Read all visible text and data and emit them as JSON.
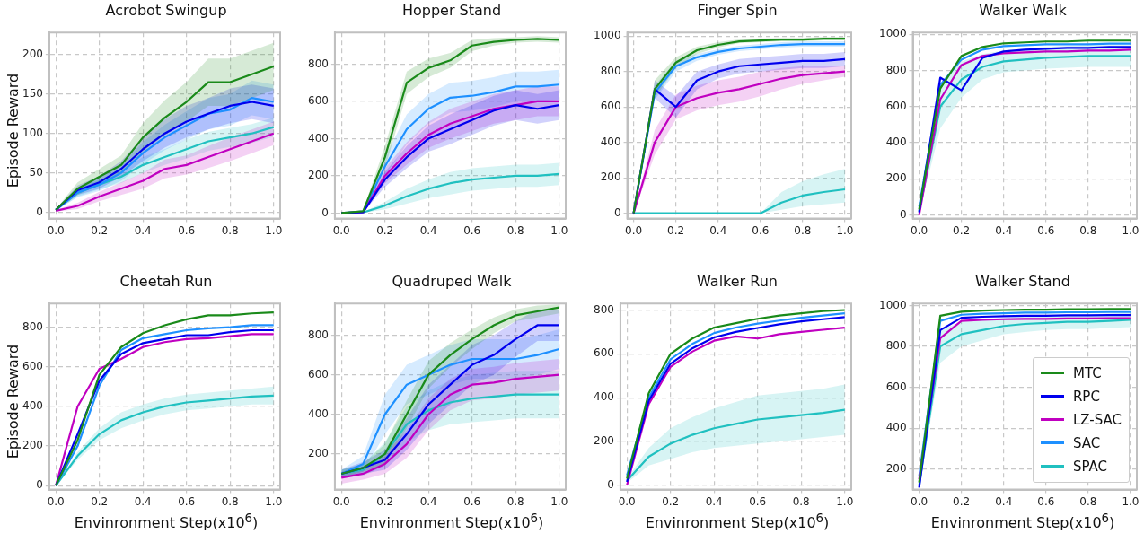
{
  "chart_data": [
    {
      "type": "line",
      "title": "Acrobot Swingup",
      "ylabel": "Episode Reward",
      "x": [
        0,
        0.1,
        0.2,
        0.3,
        0.4,
        0.5,
        0.6,
        0.7,
        0.8,
        0.9,
        1
      ],
      "xlim": [
        -0.03,
        1.03
      ],
      "xticks": [
        {
          "value": 0,
          "label": "0.0"
        },
        {
          "value": 0.2,
          "label": "0.2"
        },
        {
          "value": 0.4,
          "label": "0.4"
        },
        {
          "value": 0.6,
          "label": "0.6"
        },
        {
          "value": 0.8,
          "label": "0.8"
        },
        {
          "value": 1,
          "label": "1.0"
        }
      ],
      "ylim": [
        -8,
        228
      ],
      "yticks": [
        0,
        50,
        100,
        150,
        200
      ],
      "grid": true,
      "series": [
        {
          "color": "#1a8a1a",
          "values": [
            3,
            30,
            45,
            60,
            95,
            120,
            140,
            165,
            165,
            175,
            185
          ],
          "lower": [
            2,
            22,
            35,
            48,
            77,
            98,
            115,
            135,
            135,
            145,
            155
          ],
          "upper": [
            4,
            38,
            55,
            72,
            113,
            142,
            165,
            195,
            195,
            205,
            215
          ]
        },
        {
          "color": "#0000ee",
          "values": [
            3,
            28,
            38,
            55,
            80,
            100,
            115,
            125,
            135,
            140,
            135
          ],
          "lower": [
            2,
            22,
            30,
            45,
            65,
            82,
            95,
            105,
            113,
            118,
            113
          ],
          "upper": [
            4,
            34,
            46,
            65,
            95,
            118,
            135,
            145,
            157,
            162,
            157
          ]
        },
        {
          "color": "#c000c0",
          "values": [
            2,
            8,
            20,
            30,
            40,
            55,
            60,
            70,
            80,
            90,
            100
          ],
          "lower": [
            1,
            4,
            14,
            22,
            30,
            43,
            48,
            56,
            65,
            75,
            85
          ],
          "upper": [
            3,
            12,
            26,
            38,
            50,
            67,
            72,
            84,
            95,
            105,
            115
          ]
        },
        {
          "color": "#1e90ff",
          "values": [
            3,
            25,
            35,
            50,
            75,
            95,
            110,
            125,
            130,
            145,
            140
          ],
          "lower": [
            2,
            19,
            27,
            40,
            61,
            79,
            92,
            105,
            110,
            123,
            118
          ],
          "upper": [
            4,
            31,
            43,
            60,
            89,
            111,
            128,
            145,
            150,
            167,
            162
          ]
        },
        {
          "color": "#20c0c0",
          "values": [
            3,
            25,
            35,
            45,
            60,
            70,
            80,
            90,
            95,
            100,
            108
          ],
          "lower": [
            2,
            20,
            29,
            37,
            50,
            60,
            68,
            78,
            83,
            88,
            96
          ],
          "upper": [
            4,
            30,
            41,
            53,
            70,
            80,
            92,
            102,
            107,
            112,
            120
          ]
        }
      ]
    },
    {
      "type": "line",
      "title": "Hopper Stand",
      "x": [
        0,
        0.1,
        0.2,
        0.3,
        0.4,
        0.5,
        0.6,
        0.7,
        0.8,
        0.9,
        1
      ],
      "xlim": [
        -0.03,
        1.03
      ],
      "xticks": [
        {
          "value": 0,
          "label": "0.0"
        },
        {
          "value": 0.2,
          "label": "0.2"
        },
        {
          "value": 0.4,
          "label": "0.4"
        },
        {
          "value": 0.6,
          "label": "0.6"
        },
        {
          "value": 0.8,
          "label": "0.8"
        },
        {
          "value": 1,
          "label": "1.0"
        }
      ],
      "ylim": [
        -30,
        970
      ],
      "yticks": [
        0,
        200,
        400,
        600,
        800
      ],
      "grid": true,
      "series": [
        {
          "color": "#1a8a1a",
          "values": [
            0,
            10,
            300,
            700,
            780,
            820,
            900,
            920,
            930,
            935,
            930
          ],
          "lower": [
            0,
            5,
            240,
            640,
            730,
            780,
            870,
            900,
            915,
            920,
            915
          ],
          "upper": [
            0,
            15,
            360,
            760,
            830,
            860,
            930,
            940,
            945,
            950,
            945
          ]
        },
        {
          "color": "#0000ee",
          "values": [
            0,
            5,
            180,
            300,
            400,
            450,
            500,
            550,
            580,
            560,
            580
          ],
          "lower": [
            0,
            2,
            140,
            240,
            330,
            370,
            420,
            470,
            500,
            480,
            500
          ],
          "upper": [
            0,
            8,
            220,
            360,
            470,
            530,
            580,
            630,
            660,
            640,
            660
          ]
        },
        {
          "color": "#c000c0",
          "values": [
            0,
            5,
            200,
            320,
            420,
            480,
            520,
            560,
            580,
            600,
            600
          ],
          "lower": [
            0,
            2,
            160,
            260,
            350,
            400,
            440,
            480,
            500,
            520,
            520
          ],
          "upper": [
            0,
            8,
            240,
            380,
            490,
            560,
            600,
            640,
            660,
            680,
            680
          ]
        },
        {
          "color": "#1e90ff",
          "values": [
            0,
            8,
            250,
            450,
            560,
            620,
            630,
            650,
            680,
            680,
            690
          ],
          "lower": [
            0,
            4,
            200,
            370,
            480,
            540,
            550,
            570,
            600,
            600,
            610
          ],
          "upper": [
            0,
            12,
            300,
            530,
            640,
            700,
            710,
            730,
            760,
            760,
            770
          ]
        },
        {
          "color": "#20c0c0",
          "values": [
            0,
            3,
            40,
            90,
            130,
            160,
            180,
            190,
            200,
            200,
            210
          ],
          "lower": [
            0,
            1,
            20,
            50,
            80,
            100,
            120,
            130,
            140,
            140,
            150
          ],
          "upper": [
            0,
            5,
            60,
            130,
            180,
            220,
            240,
            250,
            260,
            260,
            270
          ]
        }
      ]
    },
    {
      "type": "line",
      "title": "Finger Spin",
      "x": [
        0,
        0.1,
        0.2,
        0.3,
        0.4,
        0.5,
        0.6,
        0.7,
        0.8,
        0.9,
        1
      ],
      "xlim": [
        -0.03,
        1.03
      ],
      "xticks": [
        {
          "value": 0,
          "label": "0.0"
        },
        {
          "value": 0.2,
          "label": "0.2"
        },
        {
          "value": 0.4,
          "label": "0.4"
        },
        {
          "value": 0.6,
          "label": "0.6"
        },
        {
          "value": 0.8,
          "label": "0.8"
        },
        {
          "value": 1,
          "label": "1.0"
        }
      ],
      "ylim": [
        -30,
        1020
      ],
      "yticks": [
        0,
        200,
        400,
        600,
        800,
        1000
      ],
      "grid": true,
      "series": [
        {
          "color": "#1a8a1a",
          "values": [
            0,
            700,
            850,
            920,
            950,
            970,
            975,
            980,
            980,
            985,
            985
          ],
          "lower": [
            0,
            650,
            820,
            900,
            935,
            960,
            965,
            970,
            970,
            975,
            975
          ],
          "upper": [
            0,
            750,
            880,
            940,
            965,
            980,
            985,
            990,
            990,
            995,
            995
          ]
        },
        {
          "color": "#0000ee",
          "values": [
            0,
            700,
            600,
            750,
            800,
            830,
            840,
            850,
            860,
            860,
            870
          ],
          "lower": [
            0,
            650,
            540,
            700,
            760,
            790,
            800,
            810,
            820,
            820,
            830
          ],
          "upper": [
            0,
            750,
            660,
            800,
            840,
            870,
            880,
            890,
            900,
            900,
            910
          ]
        },
        {
          "color": "#c000c0",
          "values": [
            0,
            400,
            600,
            650,
            680,
            700,
            730,
            760,
            780,
            790,
            800
          ],
          "lower": [
            0,
            330,
            530,
            580,
            610,
            630,
            660,
            700,
            730,
            750,
            770
          ],
          "upper": [
            0,
            470,
            670,
            720,
            750,
            770,
            800,
            820,
            830,
            830,
            830
          ]
        },
        {
          "color": "#1e90ff",
          "values": [
            0,
            680,
            830,
            880,
            910,
            930,
            940,
            950,
            955,
            955,
            955
          ],
          "lower": [
            0,
            640,
            800,
            860,
            895,
            915,
            925,
            935,
            940,
            940,
            940
          ],
          "upper": [
            0,
            720,
            860,
            900,
            925,
            945,
            955,
            965,
            970,
            970,
            970
          ]
        },
        {
          "color": "#20c0c0",
          "values": [
            0,
            0,
            0,
            0,
            0,
            0,
            0,
            60,
            100,
            120,
            135
          ],
          "lower": [
            0,
            0,
            0,
            0,
            0,
            0,
            0,
            20,
            40,
            50,
            60
          ],
          "upper": [
            0,
            0,
            0,
            0,
            0,
            0,
            0,
            120,
            180,
            220,
            250
          ]
        }
      ]
    },
    {
      "type": "line",
      "title": "Walker Walk",
      "x": [
        0,
        0.1,
        0.2,
        0.3,
        0.4,
        0.5,
        0.6,
        0.7,
        0.8,
        0.9,
        1
      ],
      "xlim": [
        -0.03,
        1.03
      ],
      "xticks": [
        {
          "value": 0,
          "label": "0.0"
        },
        {
          "value": 0.2,
          "label": "0.2"
        },
        {
          "value": 0.4,
          "label": "0.4"
        },
        {
          "value": 0.6,
          "label": "0.6"
        },
        {
          "value": 0.8,
          "label": "0.8"
        },
        {
          "value": 1,
          "label": "1.0"
        }
      ],
      "ylim": [
        -20,
        1010
      ],
      "yticks": [
        0,
        200,
        400,
        600,
        800,
        1000
      ],
      "grid": true,
      "series": [
        {
          "color": "#1a8a1a",
          "values": [
            30,
            700,
            880,
            930,
            950,
            955,
            960,
            960,
            965,
            965,
            965
          ]
        },
        {
          "color": "#0000ee",
          "values": [
            15,
            760,
            690,
            870,
            905,
            915,
            920,
            925,
            925,
            930,
            930
          ]
        },
        {
          "color": "#c000c0",
          "values": [
            0,
            640,
            830,
            880,
            895,
            900,
            905,
            905,
            910,
            910,
            915
          ]
        },
        {
          "color": "#1e90ff",
          "values": [
            45,
            720,
            860,
            915,
            935,
            940,
            945,
            945,
            945,
            948,
            948
          ]
        },
        {
          "color": "#20c0c0",
          "values": [
            20,
            600,
            750,
            820,
            850,
            860,
            870,
            875,
            880,
            880,
            880
          ],
          "lower": [
            10,
            480,
            650,
            750,
            790,
            800,
            810,
            815,
            820,
            820,
            820
          ],
          "upper": [
            30,
            720,
            850,
            890,
            910,
            920,
            930,
            935,
            940,
            940,
            940
          ]
        }
      ]
    },
    {
      "type": "line",
      "title": "Cheetah Run",
      "ylabel": "Episode Reward",
      "xlabel": "Envinronment Step(x10$^{6}$)",
      "x": [
        0,
        0.1,
        0.2,
        0.3,
        0.4,
        0.5,
        0.6,
        0.7,
        0.8,
        0.9,
        1
      ],
      "xlim": [
        -0.03,
        1.03
      ],
      "xticks": [
        {
          "value": 0,
          "label": "0.0"
        },
        {
          "value": 0.2,
          "label": "0.2"
        },
        {
          "value": 0.4,
          "label": "0.4"
        },
        {
          "value": 0.6,
          "label": "0.6"
        },
        {
          "value": 0.8,
          "label": "0.8"
        },
        {
          "value": 1,
          "label": "1.0"
        }
      ],
      "ylim": [
        -20,
        920
      ],
      "yticks": [
        0,
        200,
        400,
        600,
        800
      ],
      "grid": true,
      "series": [
        {
          "color": "#1a8a1a",
          "values": [
            0,
            230,
            560,
            700,
            770,
            810,
            840,
            860,
            860,
            870,
            875
          ]
        },
        {
          "color": "#0000ee",
          "values": [
            0,
            260,
            530,
            665,
            720,
            740,
            760,
            760,
            775,
            785,
            785
          ]
        },
        {
          "color": "#c000c0",
          "values": [
            0,
            400,
            590,
            640,
            700,
            725,
            740,
            745,
            755,
            765,
            765
          ]
        },
        {
          "color": "#1e90ff",
          "values": [
            0,
            200,
            505,
            685,
            745,
            765,
            785,
            795,
            800,
            810,
            810
          ]
        },
        {
          "color": "#20c0c0",
          "values": [
            0,
            150,
            260,
            330,
            370,
            400,
            420,
            430,
            440,
            450,
            455
          ],
          "lower": [
            0,
            130,
            230,
            290,
            330,
            360,
            380,
            390,
            400,
            410,
            410
          ],
          "upper": [
            0,
            170,
            290,
            370,
            410,
            440,
            460,
            470,
            480,
            490,
            500
          ]
        }
      ]
    },
    {
      "type": "line",
      "title": "Quadruped Walk",
      "xlabel": "Envinronment Step(x10$^{6}$)",
      "x": [
        0,
        0.1,
        0.2,
        0.3,
        0.4,
        0.5,
        0.6,
        0.7,
        0.8,
        0.9,
        1
      ],
      "xlim": [
        -0.03,
        1.03
      ],
      "xticks": [
        {
          "value": 0,
          "label": "0.0"
        },
        {
          "value": 0.2,
          "label": "0.2"
        },
        {
          "value": 0.4,
          "label": "0.4"
        },
        {
          "value": 0.6,
          "label": "0.6"
        },
        {
          "value": 0.8,
          "label": "0.8"
        },
        {
          "value": 1,
          "label": "1.0"
        }
      ],
      "ylim": [
        20,
        960
      ],
      "yticks": [
        200,
        400,
        600,
        800
      ],
      "grid": true,
      "series": [
        {
          "color": "#1a8a1a",
          "values": [
            100,
            130,
            200,
            400,
            600,
            700,
            780,
            850,
            900,
            920,
            940
          ],
          "lower": [
            80,
            110,
            150,
            330,
            530,
            640,
            730,
            810,
            870,
            890,
            910
          ],
          "upper": [
            120,
            150,
            250,
            470,
            670,
            760,
            830,
            890,
            930,
            950,
            955
          ]
        },
        {
          "color": "#0000ee",
          "values": [
            100,
            130,
            170,
            300,
            450,
            550,
            650,
            700,
            780,
            850,
            850
          ],
          "lower": [
            80,
            100,
            120,
            220,
            350,
            450,
            550,
            600,
            690,
            770,
            770
          ],
          "upper": [
            120,
            160,
            220,
            380,
            550,
            650,
            750,
            800,
            870,
            930,
            930
          ]
        },
        {
          "color": "#c000c0",
          "values": [
            80,
            100,
            150,
            250,
            400,
            500,
            550,
            560,
            580,
            590,
            600
          ],
          "lower": [
            50,
            70,
            100,
            180,
            320,
            420,
            470,
            480,
            500,
            510,
            520
          ],
          "upper": [
            110,
            130,
            200,
            320,
            480,
            580,
            630,
            640,
            660,
            670,
            680
          ]
        },
        {
          "color": "#1e90ff",
          "values": [
            100,
            150,
            400,
            550,
            600,
            650,
            680,
            680,
            680,
            700,
            730
          ],
          "lower": [
            80,
            110,
            300,
            450,
            500,
            550,
            580,
            580,
            580,
            600,
            630
          ],
          "upper": [
            120,
            190,
            500,
            650,
            700,
            750,
            780,
            780,
            780,
            800,
            830
          ]
        },
        {
          "color": "#20c0c0",
          "values": [
            100,
            120,
            200,
            350,
            420,
            460,
            480,
            490,
            500,
            500,
            500
          ],
          "lower": [
            80,
            90,
            140,
            260,
            320,
            350,
            360,
            370,
            380,
            380,
            380
          ],
          "upper": [
            120,
            150,
            260,
            440,
            520,
            570,
            600,
            610,
            620,
            620,
            620
          ]
        }
      ]
    },
    {
      "type": "line",
      "title": "Walker Run",
      "xlabel": "Envinronment Step(x10$^{6}$)",
      "x": [
        0,
        0.1,
        0.2,
        0.3,
        0.4,
        0.5,
        0.6,
        0.7,
        0.8,
        0.9,
        1
      ],
      "xlim": [
        -0.03,
        1.03
      ],
      "xticks": [
        {
          "value": 0,
          "label": "0.0"
        },
        {
          "value": 0.2,
          "label": "0.2"
        },
        {
          "value": 0.4,
          "label": "0.4"
        },
        {
          "value": 0.6,
          "label": "0.6"
        },
        {
          "value": 0.8,
          "label": "0.8"
        },
        {
          "value": 1,
          "label": "1.0"
        }
      ],
      "ylim": [
        -20,
        830
      ],
      "yticks": [
        0,
        200,
        400,
        600,
        800
      ],
      "grid": true,
      "series": [
        {
          "color": "#1a8a1a",
          "values": [
            30,
            420,
            600,
            670,
            720,
            740,
            760,
            775,
            785,
            795,
            800
          ]
        },
        {
          "color": "#0000ee",
          "values": [
            15,
            385,
            555,
            625,
            675,
            700,
            718,
            735,
            748,
            758,
            768
          ]
        },
        {
          "color": "#c000c0",
          "values": [
            0,
            370,
            540,
            610,
            660,
            680,
            670,
            690,
            700,
            710,
            720
          ]
        },
        {
          "color": "#1e90ff",
          "values": [
            45,
            400,
            575,
            645,
            695,
            720,
            738,
            752,
            765,
            775,
            785
          ]
        },
        {
          "color": "#20c0c0",
          "values": [
            20,
            130,
            190,
            230,
            260,
            280,
            300,
            310,
            320,
            330,
            345
          ],
          "lower": [
            10,
            90,
            120,
            150,
            170,
            180,
            190,
            200,
            210,
            220,
            230
          ],
          "upper": [
            30,
            170,
            260,
            310,
            350,
            380,
            410,
            420,
            430,
            440,
            460
          ]
        }
      ]
    },
    {
      "type": "line",
      "title": "Walker Stand",
      "xlabel": "Envinronment Step(x10$^{6}$)",
      "legend": "bottom right",
      "x": [
        0,
        0.1,
        0.2,
        0.3,
        0.4,
        0.5,
        0.6,
        0.7,
        0.8,
        0.9,
        1
      ],
      "xlim": [
        -0.03,
        1.03
      ],
      "xticks": [
        {
          "value": 0,
          "label": "0.0"
        },
        {
          "value": 0.2,
          "label": "0.2"
        },
        {
          "value": 0.4,
          "label": "0.4"
        },
        {
          "value": 0.6,
          "label": "0.6"
        },
        {
          "value": 0.8,
          "label": "0.8"
        },
        {
          "value": 1,
          "label": "1.0"
        }
      ],
      "ylim": [
        100,
        1010
      ],
      "yticks": [
        200,
        400,
        600,
        800,
        1000
      ],
      "grid": true,
      "series": [
        {
          "name": "MTC",
          "color": "#1a8a1a",
          "values": [
            135,
            950,
            970,
            975,
            978,
            980,
            980,
            982,
            982,
            983,
            983
          ]
        },
        {
          "name": "RPC",
          "color": "#0000ee",
          "values": [
            110,
            880,
            940,
            945,
            948,
            950,
            950,
            952,
            952,
            953,
            953
          ]
        },
        {
          "name": "LZ-SAC",
          "color": "#c000c0",
          "values": [
            150,
            840,
            925,
            930,
            933,
            935,
            935,
            937,
            937,
            938,
            938
          ]
        },
        {
          "name": "SAC",
          "color": "#1e90ff",
          "values": [
            165,
            925,
            955,
            960,
            962,
            965,
            965,
            967,
            967,
            968,
            968
          ]
        },
        {
          "name": "SPAC",
          "color": "#20c0c0",
          "values": [
            120,
            800,
            860,
            880,
            900,
            910,
            915,
            920,
            920,
            925,
            930
          ],
          "lower": [
            110,
            720,
            800,
            830,
            860,
            870,
            880,
            885,
            885,
            890,
            895
          ],
          "upper": [
            130,
            880,
            920,
            930,
            940,
            950,
            950,
            955,
            955,
            960,
            965
          ]
        }
      ]
    }
  ]
}
